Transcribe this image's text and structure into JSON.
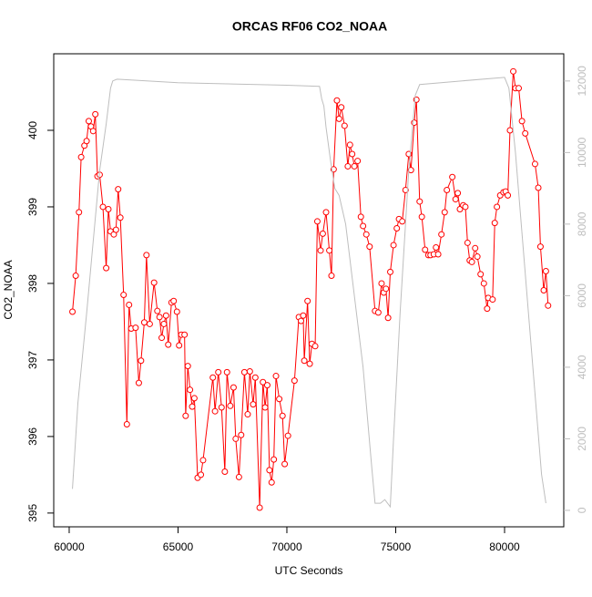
{
  "chart_data": {
    "type": "line",
    "title": "ORCAS RF06 CO2_NOAA",
    "x_label": "UTC Seconds",
    "y_label": "CO2_NOAA",
    "xlim": [
      59290,
      82720
    ],
    "ylim": [
      394.82,
      401.0
    ],
    "y2lim": [
      -460,
      12760
    ],
    "xticks": [
      60000,
      65000,
      70000,
      75000,
      80000
    ],
    "yticks": [
      395,
      396,
      397,
      398,
      399,
      400
    ],
    "y2ticks": [
      0,
      2000,
      4000,
      6000,
      8000,
      10000,
      12000
    ],
    "y2_color": "#bebebe",
    "series": [
      {
        "color": "#ff0000",
        "markers": true,
        "x": [
          60150,
          60300,
          60450,
          60550,
          60700,
          60800,
          60900,
          61000,
          61100,
          61200,
          61300,
          61400,
          61550,
          61700,
          61800,
          61900,
          62050,
          62150,
          62250,
          62350,
          62500,
          62650,
          62750,
          62850,
          63050,
          63200,
          63300,
          63450,
          63550,
          63700,
          63900,
          64050,
          64150,
          64250,
          64350,
          64450,
          64550,
          64700,
          64800,
          64950,
          65050,
          65150,
          65300,
          65350,
          65450,
          65550,
          65650,
          65750,
          65900,
          66050,
          66150,
          66600,
          66700,
          66850,
          67000,
          67150,
          67250,
          67400,
          67550,
          67650,
          67800,
          67900,
          68050,
          68200,
          68300,
          68450,
          68550,
          68750,
          68900,
          69000,
          69100,
          69200,
          69300,
          69400,
          69500,
          69650,
          69800,
          69900,
          70050,
          70350,
          70550,
          70650,
          70750,
          70800,
          70950,
          71050,
          71150,
          71300,
          71400,
          71550,
          71650,
          71800,
          71950,
          72050,
          72150,
          72300,
          72400,
          72500,
          72650,
          72800,
          72900,
          73000,
          73100,
          73250,
          73400,
          73500,
          73650,
          73800,
          74050,
          74200,
          74350,
          74450,
          74550,
          74650,
          74750,
          74900,
          75050,
          75150,
          75300,
          75450,
          75600,
          75700,
          75850,
          75950,
          76100,
          76200,
          76350,
          76500,
          76600,
          76750,
          76850,
          76950,
          77100,
          77250,
          77350,
          77600,
          77750,
          77850,
          77950,
          78100,
          78200,
          78300,
          78400,
          78500,
          78650,
          78750,
          78900,
          79050,
          79200,
          79250,
          79450,
          79550,
          79650,
          79800,
          79950,
          80050,
          80150,
          80250,
          80400,
          80500,
          80650,
          80800,
          80950,
          81400,
          81550,
          81650,
          81800,
          81900,
          82000
        ],
        "values": [
          397.63,
          398.1,
          398.93,
          399.65,
          399.8,
          399.86,
          400.12,
          400.05,
          399.99,
          400.21,
          399.4,
          399.42,
          399.0,
          398.2,
          398.97,
          398.68,
          398.64,
          398.7,
          399.23,
          398.86,
          397.85,
          396.16,
          397.72,
          397.41,
          397.42,
          396.7,
          396.99,
          397.49,
          398.37,
          397.47,
          398.01,
          397.64,
          397.56,
          397.29,
          397.47,
          397.58,
          397.2,
          397.75,
          397.77,
          397.63,
          397.19,
          397.33,
          397.33,
          396.27,
          396.92,
          396.61,
          396.39,
          396.5,
          395.46,
          395.5,
          395.69,
          396.77,
          396.33,
          396.84,
          396.38,
          395.54,
          396.84,
          396.4,
          396.64,
          395.97,
          395.47,
          396.02,
          396.84,
          396.29,
          396.85,
          396.42,
          396.77,
          395.07,
          396.71,
          396.38,
          396.67,
          395.56,
          395.4,
          395.7,
          396.79,
          396.49,
          396.27,
          395.64,
          396.01,
          396.73,
          397.56,
          397.51,
          397.58,
          396.99,
          397.77,
          396.95,
          397.21,
          397.18,
          398.81,
          398.43,
          398.65,
          398.93,
          398.43,
          398.1,
          399.49,
          400.39,
          400.15,
          400.3,
          400.06,
          399.53,
          399.81,
          399.69,
          399.53,
          399.6,
          398.87,
          398.75,
          398.64,
          398.48,
          397.64,
          397.62,
          398.0,
          397.88,
          397.93,
          397.55,
          398.15,
          398.5,
          398.72,
          398.84,
          398.81,
          399.22,
          399.69,
          399.48,
          400.1,
          400.4,
          399.07,
          398.87,
          398.44,
          398.37,
          398.37,
          398.38,
          398.47,
          398.38,
          398.64,
          398.93,
          399.22,
          399.39,
          399.1,
          399.18,
          398.97,
          399.02,
          399.0,
          398.53,
          398.3,
          398.28,
          398.46,
          398.35,
          398.12,
          398.0,
          397.67,
          397.81,
          397.79,
          398.79,
          399.0,
          399.15,
          399.19,
          399.2,
          399.15,
          400.0,
          400.77,
          400.55,
          400.55,
          400.12,
          399.96,
          399.56,
          399.25,
          398.48,
          397.91,
          398.16,
          397.71
        ]
      },
      {
        "color": "#bebebe",
        "axis": "y2",
        "markers": false,
        "x": [
          60150,
          60400,
          60800,
          61100,
          61400,
          61700,
          61900,
          62000,
          62200,
          65000,
          70000,
          71500,
          71600,
          71700,
          71800,
          72000,
          72200,
          72400,
          72700,
          73000,
          73500,
          73900,
          74050,
          74300,
          74500,
          74750,
          74900,
          75200,
          75600,
          75900,
          76100,
          78000,
          80000,
          80200,
          80500,
          80900,
          81300,
          81700,
          81900
        ],
        "values": [
          600,
          3000,
          5500,
          7500,
          9500,
          10800,
          11800,
          12000,
          12050,
          11950,
          11880,
          11850,
          11500,
          11300,
          10700,
          9800,
          9000,
          8800,
          8000,
          6500,
          4000,
          1200,
          200,
          200,
          300,
          100,
          2000,
          5500,
          9500,
          11600,
          11900,
          12000,
          12100,
          11800,
          10000,
          7000,
          4000,
          1000,
          200
        ]
      }
    ]
  }
}
